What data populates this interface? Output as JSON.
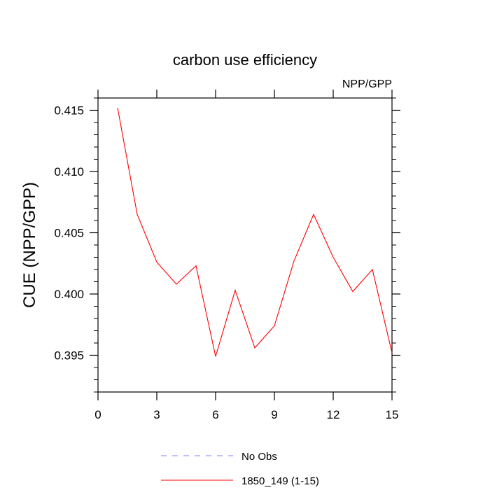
{
  "chart_data": {
    "type": "line",
    "title": "carbon use efficiency",
    "right_title": "NPP/GPP",
    "xlabel": "",
    "ylabel": "CUE  (NPP/GPP)",
    "xlim": [
      0,
      15
    ],
    "ylim": [
      0.392,
      0.416
    ],
    "x_ticks": [
      0,
      3,
      6,
      9,
      12,
      15
    ],
    "x_tick_labels": [
      "0",
      "3",
      "6",
      "9",
      "12",
      "15"
    ],
    "y_ticks": [
      0.395,
      0.4,
      0.405,
      0.41,
      0.415
    ],
    "y_tick_labels": [
      "0.395",
      "0.400",
      "0.405",
      "0.410",
      "0.415"
    ],
    "grid": false,
    "legend_position": "bottom",
    "series": [
      {
        "name": "No Obs",
        "color": "#8080ff",
        "dash": "dashed",
        "x": [],
        "values": []
      },
      {
        "name": "1850_149 (1-15)",
        "color": "#ff0000",
        "dash": "solid",
        "x": [
          1,
          2,
          3,
          4,
          5,
          6,
          7,
          8,
          9,
          10,
          11,
          12,
          13,
          14,
          15
        ],
        "values": [
          0.4152,
          0.4065,
          0.4026,
          0.4008,
          0.4023,
          0.3949,
          0.4003,
          0.3956,
          0.3974,
          0.4027,
          0.4065,
          0.403,
          0.4002,
          0.402,
          0.3952
        ]
      }
    ]
  }
}
